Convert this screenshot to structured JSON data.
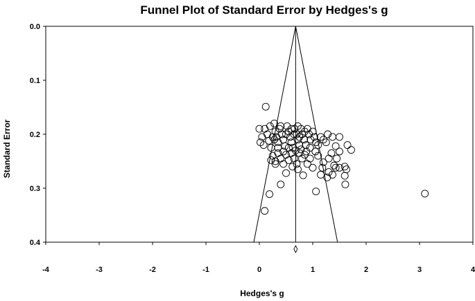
{
  "chart_data": {
    "type": "scatter",
    "title": "Funnel Plot of Standard Error by Hedges's g",
    "xlabel": "Hedges's g",
    "ylabel": "Standard Error",
    "xlim": [
      -4,
      4
    ],
    "ylim": [
      0.0,
      0.4
    ],
    "y_inverted": true,
    "x_ticks": [
      "-4",
      "-3",
      "-2",
      "-1",
      "0",
      "1",
      "2",
      "3",
      "4"
    ],
    "y_ticks": [
      "0.0",
      "0.1",
      "0.2",
      "0.3",
      "0.4"
    ],
    "grid": false,
    "legend": "none",
    "summary_effect": 0.68,
    "funnel_apex_se": 0.0,
    "funnel_base_se": 0.4,
    "marker": "open-circle",
    "diamond_marker_at_x": 0.68,
    "points": [
      {
        "x": 0.12,
        "y": 0.149
      },
      {
        "x": 0.1,
        "y": 0.342
      },
      {
        "x": 0.19,
        "y": 0.311
      },
      {
        "x": 0.4,
        "y": 0.293
      },
      {
        "x": 1.06,
        "y": 0.306
      },
      {
        "x": 3.1,
        "y": 0.31
      },
      {
        "x": 1.65,
        "y": 0.22
      },
      {
        "x": 1.72,
        "y": 0.229
      },
      {
        "x": 1.61,
        "y": 0.293
      },
      {
        "x": 1.6,
        "y": 0.277
      },
      {
        "x": 1.6,
        "y": 0.26
      },
      {
        "x": 1.63,
        "y": 0.265
      },
      {
        "x": 1.5,
        "y": 0.262
      },
      {
        "x": 1.43,
        "y": 0.262
      },
      {
        "x": 1.37,
        "y": 0.275
      },
      {
        "x": 1.27,
        "y": 0.28
      },
      {
        "x": 1.15,
        "y": 0.275
      },
      {
        "x": 0.82,
        "y": 0.276
      },
      {
        "x": 0.5,
        "y": 0.272
      },
      {
        "x": 1.5,
        "y": 0.232
      },
      {
        "x": 1.43,
        "y": 0.222
      },
      {
        "x": 1.5,
        "y": 0.205
      },
      {
        "x": 1.37,
        "y": 0.205
      },
      {
        "x": 1.28,
        "y": 0.2
      },
      {
        "x": 1.2,
        "y": 0.21
      },
      {
        "x": 1.1,
        "y": 0.22
      },
      {
        "x": 1.3,
        "y": 0.245
      },
      {
        "x": 1.2,
        "y": 0.252
      },
      {
        "x": 1.0,
        "y": 0.262
      },
      {
        "x": 0.9,
        "y": 0.255
      },
      {
        "x": 0.0,
        "y": 0.19
      },
      {
        "x": 0.05,
        "y": 0.205
      },
      {
        "x": 0.02,
        "y": 0.215
      },
      {
        "x": 0.08,
        "y": 0.22
      },
      {
        "x": 0.1,
        "y": 0.19
      },
      {
        "x": 0.15,
        "y": 0.2
      },
      {
        "x": 0.18,
        "y": 0.212
      },
      {
        "x": 0.22,
        "y": 0.225
      },
      {
        "x": 0.28,
        "y": 0.18
      },
      {
        "x": 0.3,
        "y": 0.195
      },
      {
        "x": 0.32,
        "y": 0.205
      },
      {
        "x": 0.35,
        "y": 0.215
      },
      {
        "x": 0.38,
        "y": 0.19
      },
      {
        "x": 0.42,
        "y": 0.2
      },
      {
        "x": 0.45,
        "y": 0.21
      },
      {
        "x": 0.48,
        "y": 0.222
      },
      {
        "x": 0.52,
        "y": 0.185
      },
      {
        "x": 0.55,
        "y": 0.195
      },
      {
        "x": 0.58,
        "y": 0.205
      },
      {
        "x": 0.6,
        "y": 0.215
      },
      {
        "x": 0.63,
        "y": 0.225
      },
      {
        "x": 0.66,
        "y": 0.19
      },
      {
        "x": 0.7,
        "y": 0.2
      },
      {
        "x": 0.72,
        "y": 0.21
      },
      {
        "x": 0.75,
        "y": 0.22
      },
      {
        "x": 0.78,
        "y": 0.19
      },
      {
        "x": 0.8,
        "y": 0.2
      },
      {
        "x": 0.84,
        "y": 0.21
      },
      {
        "x": 0.87,
        "y": 0.22
      },
      {
        "x": 0.9,
        "y": 0.19
      },
      {
        "x": 0.93,
        "y": 0.2
      },
      {
        "x": 0.96,
        "y": 0.21
      },
      {
        "x": 1.0,
        "y": 0.195
      },
      {
        "x": 1.03,
        "y": 0.205
      },
      {
        "x": 1.06,
        "y": 0.215
      },
      {
        "x": 0.25,
        "y": 0.24
      },
      {
        "x": 0.3,
        "y": 0.25
      },
      {
        "x": 0.35,
        "y": 0.235
      },
      {
        "x": 0.4,
        "y": 0.245
      },
      {
        "x": 0.45,
        "y": 0.255
      },
      {
        "x": 0.5,
        "y": 0.238
      },
      {
        "x": 0.55,
        "y": 0.248
      },
      {
        "x": 0.6,
        "y": 0.235
      },
      {
        "x": 0.65,
        "y": 0.245
      },
      {
        "x": 0.7,
        "y": 0.255
      },
      {
        "x": 0.75,
        "y": 0.235
      },
      {
        "x": 0.8,
        "y": 0.245
      },
      {
        "x": 0.85,
        "y": 0.238
      },
      {
        "x": 0.95,
        "y": 0.245
      },
      {
        "x": 1.1,
        "y": 0.24
      },
      {
        "x": 0.2,
        "y": 0.185
      },
      {
        "x": 0.25,
        "y": 0.205
      },
      {
        "x": 0.4,
        "y": 0.185
      },
      {
        "x": 0.6,
        "y": 0.19
      },
      {
        "x": 0.65,
        "y": 0.2
      },
      {
        "x": 0.72,
        "y": 0.185
      },
      {
        "x": 0.85,
        "y": 0.195
      },
      {
        "x": 0.95,
        "y": 0.225
      },
      {
        "x": 1.15,
        "y": 0.205
      },
      {
        "x": 1.25,
        "y": 0.215
      },
      {
        "x": 0.55,
        "y": 0.225
      },
      {
        "x": 0.45,
        "y": 0.232
      },
      {
        "x": 0.35,
        "y": 0.225
      },
      {
        "x": 0.28,
        "y": 0.21
      },
      {
        "x": 0.68,
        "y": 0.23
      },
      {
        "x": 0.78,
        "y": 0.228
      },
      {
        "x": 0.88,
        "y": 0.232
      },
      {
        "x": 1.05,
        "y": 0.232
      },
      {
        "x": 1.35,
        "y": 0.235
      },
      {
        "x": 1.45,
        "y": 0.245
      },
      {
        "x": 0.62,
        "y": 0.26
      },
      {
        "x": 0.72,
        "y": 0.265
      },
      {
        "x": 0.3,
        "y": 0.255
      },
      {
        "x": 0.22,
        "y": 0.248
      },
      {
        "x": 1.18,
        "y": 0.262
      },
      {
        "x": 1.3,
        "y": 0.27
      },
      {
        "x": 1.4,
        "y": 0.258
      },
      {
        "x": 0.5,
        "y": 0.2
      },
      {
        "x": 0.75,
        "y": 0.205
      }
    ]
  }
}
